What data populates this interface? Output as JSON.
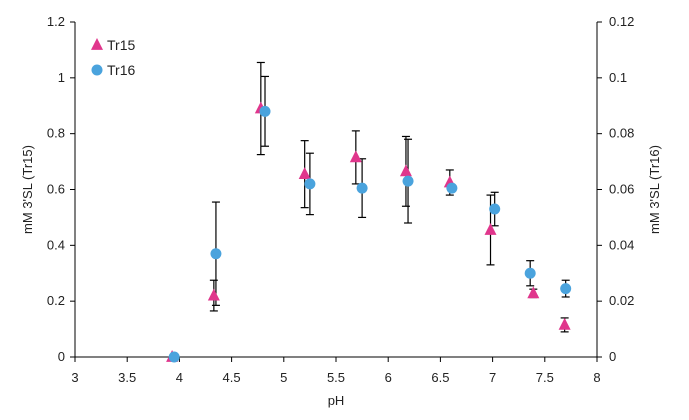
{
  "chart_data": {
    "type": "scatter",
    "xlabel": "pH",
    "ylabel_left": "mM 3'SL (Tr15)",
    "ylabel_right": "mM 3'SL (Tr16)",
    "xlim": [
      3,
      8
    ],
    "ylim_left": [
      0,
      1.2
    ],
    "ylim_right": [
      0,
      0.12
    ],
    "x_ticks": [
      "3",
      "3.5",
      "4",
      "4.5",
      "5",
      "5.5",
      "6",
      "6.5",
      "7",
      "7.5",
      "8"
    ],
    "y_ticks_left": [
      "0",
      "0.2",
      "0.4",
      "0.6",
      "0.8",
      "1",
      "1.2"
    ],
    "y_ticks_right": [
      "0",
      "0.02",
      "0.04",
      "0.06",
      "0.08",
      "0.1",
      "0.12"
    ],
    "legend_position": "top-left",
    "series": [
      {
        "name": "Tr15",
        "axis": "left",
        "marker": "triangle",
        "color": "#e0368c",
        "points": [
          {
            "x": 3.93,
            "y": 0.0,
            "err": 0.0
          },
          {
            "x": 4.33,
            "y": 0.22,
            "err": 0.055
          },
          {
            "x": 4.78,
            "y": 0.89,
            "err": 0.165
          },
          {
            "x": 5.2,
            "y": 0.655,
            "err": 0.12
          },
          {
            "x": 5.69,
            "y": 0.715,
            "err": 0.095
          },
          {
            "x": 6.17,
            "y": 0.665,
            "err": 0.125
          },
          {
            "x": 6.59,
            "y": 0.625,
            "err": 0.045
          },
          {
            "x": 6.98,
            "y": 0.455,
            "err": 0.125
          },
          {
            "x": 7.39,
            "y": 0.228,
            "err": 0.015
          },
          {
            "x": 7.69,
            "y": 0.115,
            "err": 0.025
          }
        ]
      },
      {
        "name": "Tr16",
        "axis": "right",
        "marker": "circle",
        "color": "#4aa3dd",
        "points": [
          {
            "x": 3.95,
            "y": 0.0,
            "err": 0.0
          },
          {
            "x": 4.35,
            "y": 0.037,
            "err": 0.0185
          },
          {
            "x": 4.82,
            "y": 0.088,
            "err": 0.0125
          },
          {
            "x": 5.25,
            "y": 0.062,
            "err": 0.011
          },
          {
            "x": 5.75,
            "y": 0.0605,
            "err": 0.0105
          },
          {
            "x": 6.19,
            "y": 0.063,
            "err": 0.015
          },
          {
            "x": 6.61,
            "y": 0.0605,
            "err": 0.0
          },
          {
            "x": 7.02,
            "y": 0.053,
            "err": 0.006
          },
          {
            "x": 7.36,
            "y": 0.03,
            "err": 0.0045
          },
          {
            "x": 7.7,
            "y": 0.0245,
            "err": 0.003
          }
        ]
      }
    ]
  }
}
